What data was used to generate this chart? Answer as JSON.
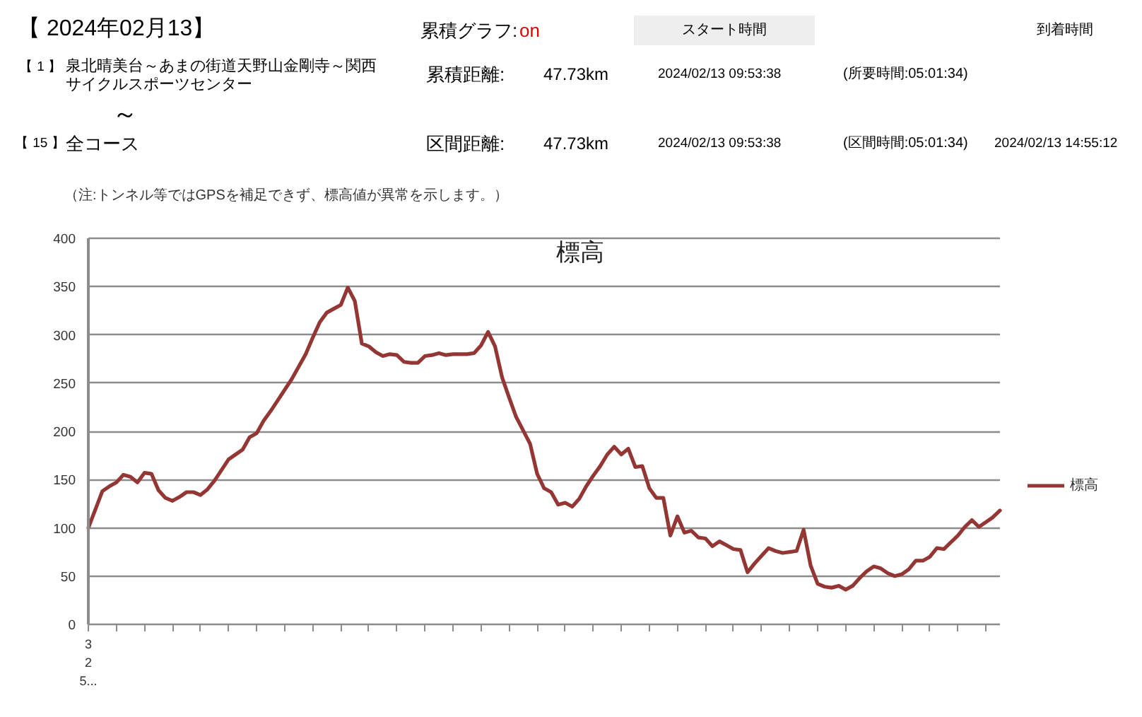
{
  "chart_data": {
    "type": "line",
    "title": "標高",
    "categories": [
      "3\n2\n5...",
      null,
      null,
      null,
      null,
      null,
      null,
      null,
      null,
      null,
      null,
      null,
      null,
      null,
      null,
      null,
      null,
      null,
      null,
      null,
      null,
      null,
      null,
      null,
      null,
      null,
      null,
      null,
      null,
      null,
      null,
      null,
      null,
      null,
      null,
      null,
      null,
      null,
      null,
      null,
      null,
      null,
      null,
      null,
      null,
      null,
      null,
      null,
      null,
      null,
      null,
      null,
      null,
      null,
      null,
      null,
      null,
      null,
      null,
      null,
      null,
      null,
      null,
      null,
      null,
      null,
      null,
      null,
      null,
      null,
      null,
      null,
      null,
      null,
      null,
      null,
      null,
      null,
      null,
      null,
      null,
      null,
      null,
      null,
      null,
      null,
      null,
      null,
      null,
      null,
      null,
      null,
      null,
      null,
      null,
      null,
      null,
      null,
      null,
      null,
      null,
      null,
      null,
      null,
      null,
      null,
      null,
      null,
      null,
      null,
      null,
      null,
      null,
      null,
      null,
      null,
      null,
      null,
      null,
      null,
      null,
      null,
      null,
      null,
      null,
      null,
      null,
      null,
      null,
      null,
      null
    ],
    "series": [
      {
        "name": "標高",
        "color": "#943634",
        "values": [
          100,
          119,
          138,
          143,
          147,
          155,
          153,
          147,
          157,
          156,
          139,
          131,
          128,
          132,
          137,
          137,
          134,
          140,
          149,
          160,
          171,
          176,
          181,
          194,
          198,
          211,
          221,
          232,
          243,
          254,
          267,
          280,
          297,
          313,
          323,
          327,
          331,
          349,
          335,
          291,
          288,
          282,
          278,
          280,
          279,
          272,
          271,
          271,
          278,
          279,
          281,
          279,
          280,
          280,
          280,
          281,
          289,
          303,
          288,
          256,
          235,
          215,
          201,
          187,
          156,
          141,
          137,
          124,
          126,
          122,
          130,
          143,
          154,
          164,
          176,
          184,
          176,
          182,
          163,
          164,
          141,
          131,
          131,
          92,
          112,
          95,
          97,
          90,
          89,
          81,
          86,
          82,
          78,
          77,
          54,
          63,
          71,
          79,
          76,
          74,
          75,
          76,
          98,
          61,
          42,
          39,
          38,
          40,
          36,
          40,
          48,
          55,
          60,
          58,
          53,
          50,
          52,
          57,
          66,
          66,
          70,
          79,
          78,
          85,
          92,
          101,
          108,
          101,
          106,
          111,
          118
        ]
      }
    ],
    "ylim": [
      0,
      400
    ],
    "yticks": [
      0,
      50,
      100,
      150,
      200,
      250,
      300,
      350,
      400
    ],
    "grid": "y",
    "legend": "right",
    "line_style": "solid",
    "annotations": [
      "【 2024年02月13】",
      "累積グラフ:",
      "on",
      "スタート時間",
      "到着時間",
      "【 1 】",
      "泉北晴美台～あまの街道天野山金剛寺～関西サイクルスポーツセンター",
      "累積距離:",
      "47.73km",
      "2024/02/13 09:53:38",
      "(所要時間:05:01:34)",
      "～",
      "【 15 】",
      "全コース",
      "区間距離:",
      "47.73km",
      "2024/02/13 09:53:38",
      "(区間時間:05:01:34)",
      "2024/02/13 14:55:12",
      "（注:トンネル等ではGPSを補足できず、標高値が異常を示します。）"
    ]
  }
}
